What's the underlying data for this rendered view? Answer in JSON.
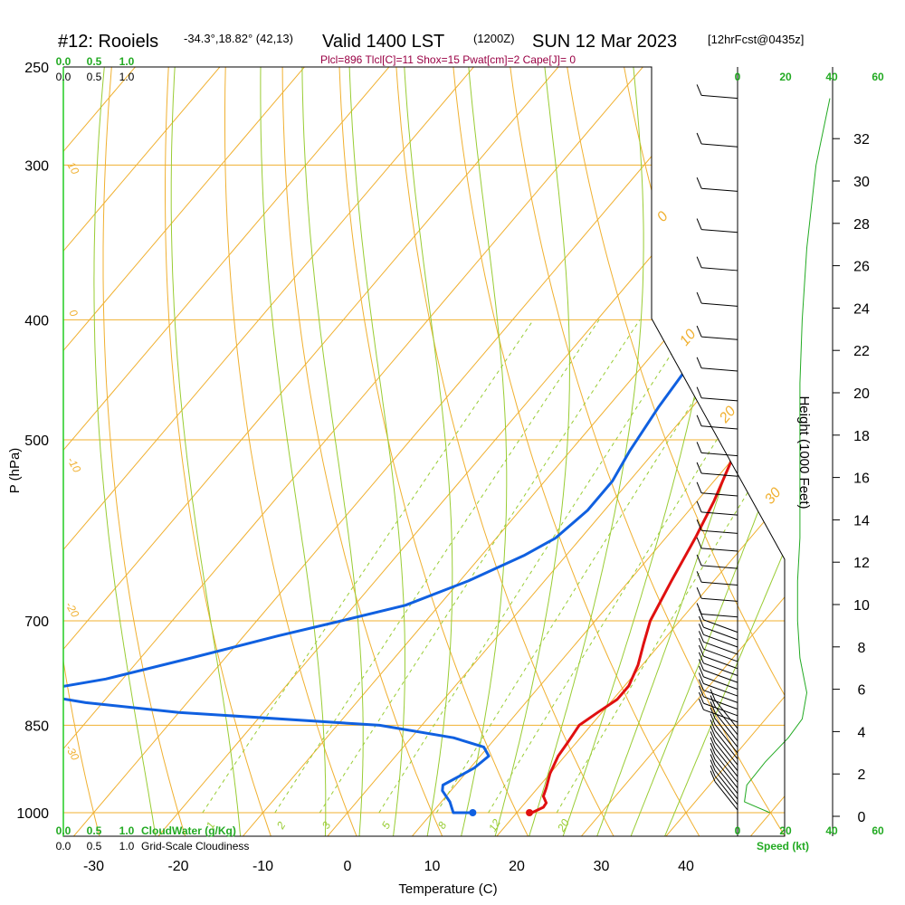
{
  "header": {
    "station": "#12: Rooiels",
    "coords": "-34.3°,18.82° (42,13)",
    "valid": "Valid 1400 LST",
    "zulu": "(1200Z)",
    "date": "SUN 12 Mar 2023",
    "fcst": "[12hrFcst@0435z]",
    "indices": "Plcl=896 Tlcl[C]=11 Shox=15 Pwat[cm]=2 Cape[J]= 0"
  },
  "chart_data": {
    "type": "line",
    "xlabel": "Temperature (C)",
    "ylabel": "P (hPa)",
    "xlim": [
      -35,
      36
    ],
    "ylim": [
      1000,
      250
    ],
    "x_ticks": [
      -30,
      -20,
      -10,
      0,
      10,
      20,
      30,
      40
    ],
    "x_tick_labels": [
      "-30",
      "-20",
      "-10",
      "0",
      "10",
      "20",
      "30",
      "40"
    ],
    "y_ticks": [
      250,
      300,
      400,
      500,
      700,
      850,
      1000
    ],
    "y_tick_labels": [
      "250",
      "300",
      "400",
      "500",
      "700",
      "850",
      "1000"
    ],
    "height_label": "Height (1000 Feet)",
    "height_ticks": [
      0,
      2,
      4,
      6,
      8,
      10,
      12,
      14,
      16,
      18,
      20,
      22,
      24,
      26,
      28,
      30,
      32
    ],
    "height_tick_labels": [
      "0",
      "2",
      "4",
      "6",
      "8",
      "10",
      "12",
      "14",
      "16",
      "18",
      "20",
      "22",
      "24",
      "26",
      "28",
      "30",
      "32"
    ],
    "isotherm_labels": [
      {
        "value": 0,
        "text": "0"
      },
      {
        "value": 10,
        "text": "10"
      },
      {
        "value": 20,
        "text": "20"
      },
      {
        "value": 30,
        "text": "30"
      }
    ],
    "dry_adiabat_labels": [
      {
        "value": 10,
        "text": "10"
      },
      {
        "value": 0,
        "text": "0"
      },
      {
        "value": -10,
        "text": "-10"
      },
      {
        "value": -20,
        "text": "-20"
      },
      {
        "value": -30,
        "text": "-30"
      }
    ],
    "mixing_ratio_labels": [
      "1",
      "2",
      "3",
      "5",
      "8",
      "12",
      "20"
    ],
    "cloud_scale_top_green": [
      "0.0",
      "0.5",
      "1.0"
    ],
    "cloud_scale_top_black": [
      "0.0",
      "0.5",
      "1.0"
    ],
    "cloud_scale_bottom_green": [
      "0.0",
      "0.5",
      "1.0"
    ],
    "cloud_scale_bottom_black": [
      "0.0",
      "0.5",
      "1.0"
    ],
    "cloudwater_label": "CloudWater (g/Kg)",
    "cloudiness_label": "Grid-Scale Cloudiness",
    "wind_speed_ticks": [
      "0",
      "20",
      "40",
      "60"
    ],
    "wind_speed_label": "Speed (kt)",
    "series": [
      {
        "name": "Temperature",
        "color": "#e01010",
        "points": [
          [
            21.8,
            1000
          ],
          [
            22.6,
            990
          ],
          [
            22.5,
            982
          ],
          [
            21.5,
            970
          ],
          [
            21,
            955
          ],
          [
            20,
            930
          ],
          [
            19.2,
            900
          ],
          [
            19,
            880
          ],
          [
            18.8,
            865
          ],
          [
            18.6,
            850
          ],
          [
            19.5,
            830
          ],
          [
            20.5,
            810
          ],
          [
            20.5,
            790
          ],
          [
            19.5,
            760
          ],
          [
            18,
            730
          ],
          [
            16.5,
            700
          ],
          [
            15,
            650
          ],
          [
            13.5,
            600
          ],
          [
            12,
            560
          ],
          [
            9.5,
            510
          ],
          [
            7,
            480
          ],
          [
            4,
            455
          ],
          [
            1,
            430
          ],
          [
            -3,
            400
          ],
          [
            -7.5,
            370
          ],
          [
            -12,
            340
          ],
          [
            -16.5,
            310
          ],
          [
            -20,
            290
          ],
          [
            -23,
            275
          ]
        ]
      },
      {
        "name": "Dewpoint",
        "color": "#1060e0",
        "points": [
          [
            14.8,
            1000
          ],
          [
            12.5,
            1000
          ],
          [
            11,
            980
          ],
          [
            9,
            960
          ],
          [
            8.5,
            950
          ],
          [
            9.5,
            935
          ],
          [
            10.5,
            920
          ],
          [
            11,
            900
          ],
          [
            9.5,
            885
          ],
          [
            5,
            870
          ],
          [
            -5,
            850
          ],
          [
            -30,
            830
          ],
          [
            -42,
            815
          ],
          [
            -50,
            800
          ],
          [
            -42,
            780
          ],
          [
            -34,
            750
          ],
          [
            -26,
            720
          ],
          [
            -20,
            700
          ],
          [
            -14,
            680
          ],
          [
            -9,
            650
          ],
          [
            -5,
            620
          ],
          [
            -3,
            600
          ],
          [
            -2,
            570
          ],
          [
            -2,
            540
          ],
          [
            -3,
            510
          ],
          [
            -4,
            470
          ],
          [
            -4.5,
            440
          ],
          [
            -7,
            420
          ],
          [
            -9.5,
            400
          ],
          [
            -14,
            370
          ],
          [
            -15.5,
            350
          ],
          [
            -17,
            330
          ],
          [
            -19,
            310
          ],
          [
            -20,
            290
          ],
          [
            -20.5,
            265
          ]
        ]
      }
    ],
    "surface_points": [
      {
        "name": "Temperature",
        "x": 21.5,
        "p": 1000,
        "color": "#e01010"
      },
      {
        "name": "Dewpoint",
        "x": 14.8,
        "p": 1000,
        "color": "#1060e0"
      }
    ],
    "wind_speed_profile": [
      [
        40,
        265
      ],
      [
        34,
        300
      ],
      [
        30,
        350
      ],
      [
        28,
        400
      ],
      [
        27,
        450
      ],
      [
        27,
        500
      ],
      [
        27,
        550
      ],
      [
        27,
        600
      ],
      [
        26,
        650
      ],
      [
        26,
        700
      ],
      [
        27,
        750
      ],
      [
        30,
        800
      ],
      [
        28,
        840
      ],
      [
        22,
        870
      ],
      [
        12,
        910
      ],
      [
        4,
        950
      ],
      [
        3,
        980
      ],
      [
        14,
        1000
      ]
    ]
  }
}
